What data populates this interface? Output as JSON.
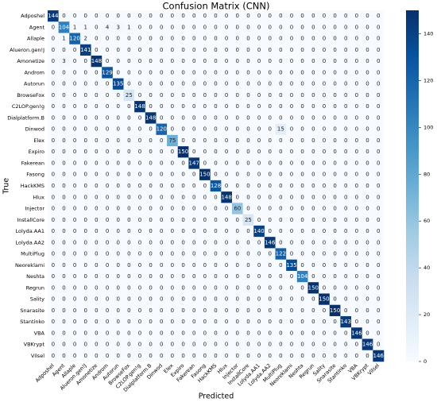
{
  "chart_data": {
    "type": "heatmap",
    "title": "Confusion Matrix (CNN)",
    "x_label": "Predicted",
    "y_label": "True",
    "categories": [
      "Adposhel",
      "Agent",
      "Allaple",
      "Alueron.gen!J",
      "Amonetize",
      "Androm",
      "Autorun",
      "BrowseFox",
      "C2LOP.gen!g",
      "Dialplatform.B",
      "Dinwod",
      "Elex",
      "Expiro",
      "Fakerean",
      "Fasong",
      "HackKMS",
      "Hlux",
      "Injector",
      "InstallCore",
      "Lolyda.AA1",
      "Lolyda.AA2",
      "MultiPlug",
      "Neoreklami",
      "Neshta",
      "Regrun",
      "Sality",
      "Snarasite",
      "Stantinko",
      "VBA",
      "VBKrypt",
      "Vilsel"
    ],
    "values": [
      [
        144,
        0,
        0,
        0,
        0,
        0,
        0,
        0,
        0,
        0,
        0,
        0,
        0,
        0,
        0,
        0,
        0,
        0,
        0,
        0,
        0,
        0,
        0,
        0,
        0,
        0,
        0,
        0,
        0,
        0,
        0
      ],
      [
        0,
        104,
        1,
        1,
        0,
        4,
        3,
        1,
        0,
        0,
        0,
        0,
        0,
        0,
        0,
        0,
        0,
        0,
        0,
        0,
        0,
        0,
        0,
        0,
        0,
        0,
        0,
        0,
        0,
        0,
        0
      ],
      [
        0,
        1,
        120,
        2,
        0,
        0,
        0,
        0,
        0,
        0,
        0,
        0,
        0,
        0,
        0,
        0,
        0,
        0,
        0,
        0,
        0,
        0,
        0,
        0,
        0,
        0,
        0,
        0,
        0,
        0,
        0
      ],
      [
        0,
        0,
        0,
        141,
        0,
        0,
        0,
        0,
        0,
        0,
        0,
        0,
        0,
        0,
        0,
        0,
        0,
        0,
        0,
        0,
        0,
        0,
        0,
        0,
        0,
        0,
        0,
        0,
        0,
        0,
        0
      ],
      [
        0,
        3,
        0,
        0,
        148,
        0,
        0,
        0,
        0,
        0,
        0,
        0,
        0,
        0,
        0,
        0,
        0,
        0,
        0,
        0,
        0,
        0,
        0,
        0,
        0,
        0,
        0,
        0,
        0,
        0,
        0
      ],
      [
        0,
        0,
        0,
        0,
        0,
        129,
        0,
        0,
        0,
        0,
        0,
        0,
        0,
        0,
        0,
        0,
        0,
        0,
        0,
        0,
        0,
        0,
        0,
        0,
        0,
        0,
        0,
        0,
        0,
        0,
        0
      ],
      [
        0,
        0,
        0,
        0,
        0,
        0,
        135,
        0,
        0,
        0,
        0,
        0,
        0,
        0,
        0,
        0,
        0,
        0,
        0,
        0,
        0,
        0,
        0,
        0,
        0,
        0,
        0,
        0,
        0,
        0,
        0
      ],
      [
        0,
        0,
        0,
        0,
        0,
        0,
        0,
        25,
        0,
        0,
        0,
        0,
        0,
        0,
        0,
        0,
        0,
        0,
        0,
        0,
        0,
        0,
        0,
        0,
        0,
        0,
        0,
        0,
        0,
        0,
        0
      ],
      [
        0,
        0,
        0,
        0,
        0,
        0,
        0,
        0,
        148,
        0,
        0,
        0,
        0,
        0,
        0,
        0,
        0,
        0,
        0,
        0,
        0,
        0,
        0,
        0,
        0,
        0,
        0,
        0,
        0,
        0,
        0
      ],
      [
        0,
        0,
        0,
        0,
        0,
        0,
        0,
        0,
        0,
        148,
        0,
        0,
        0,
        0,
        0,
        0,
        0,
        0,
        0,
        0,
        0,
        0,
        0,
        0,
        0,
        0,
        0,
        0,
        0,
        0,
        0
      ],
      [
        0,
        0,
        0,
        0,
        0,
        0,
        0,
        0,
        0,
        0,
        120,
        0,
        0,
        0,
        0,
        0,
        0,
        0,
        0,
        0,
        0,
        15,
        0,
        0,
        0,
        0,
        0,
        0,
        0,
        0,
        0
      ],
      [
        0,
        0,
        0,
        0,
        0,
        0,
        0,
        0,
        0,
        0,
        0,
        75,
        0,
        0,
        0,
        0,
        0,
        0,
        0,
        0,
        0,
        0,
        0,
        0,
        0,
        0,
        0,
        0,
        0,
        0,
        0
      ],
      [
        0,
        0,
        0,
        0,
        0,
        0,
        0,
        0,
        0,
        0,
        0,
        0,
        150,
        0,
        0,
        0,
        0,
        0,
        0,
        0,
        0,
        0,
        0,
        0,
        0,
        0,
        0,
        0,
        0,
        0,
        0
      ],
      [
        0,
        0,
        0,
        0,
        0,
        0,
        0,
        0,
        0,
        0,
        0,
        0,
        0,
        147,
        0,
        0,
        0,
        0,
        0,
        0,
        0,
        0,
        0,
        0,
        0,
        0,
        0,
        0,
        0,
        0,
        0
      ],
      [
        0,
        0,
        0,
        0,
        0,
        0,
        0,
        0,
        0,
        0,
        0,
        0,
        0,
        0,
        150,
        0,
        0,
        0,
        0,
        0,
        0,
        0,
        0,
        0,
        0,
        0,
        0,
        0,
        0,
        0,
        0
      ],
      [
        0,
        0,
        0,
        0,
        0,
        0,
        0,
        0,
        0,
        0,
        0,
        0,
        0,
        0,
        0,
        128,
        0,
        0,
        0,
        0,
        0,
        0,
        0,
        0,
        0,
        0,
        0,
        0,
        0,
        0,
        0
      ],
      [
        0,
        0,
        0,
        0,
        0,
        0,
        0,
        0,
        0,
        0,
        0,
        0,
        0,
        0,
        0,
        0,
        148,
        0,
        0,
        0,
        0,
        0,
        0,
        0,
        0,
        0,
        0,
        0,
        0,
        0,
        0
      ],
      [
        0,
        0,
        0,
        0,
        0,
        0,
        0,
        0,
        0,
        0,
        0,
        0,
        0,
        0,
        0,
        0,
        0,
        60,
        0,
        0,
        0,
        0,
        0,
        0,
        0,
        0,
        0,
        0,
        0,
        0,
        0
      ],
      [
        0,
        0,
        0,
        0,
        0,
        0,
        0,
        0,
        0,
        0,
        0,
        0,
        0,
        0,
        0,
        0,
        0,
        0,
        25,
        0,
        0,
        0,
        0,
        0,
        0,
        0,
        0,
        0,
        0,
        0,
        0
      ],
      [
        0,
        0,
        0,
        0,
        0,
        0,
        0,
        0,
        0,
        0,
        0,
        0,
        0,
        0,
        0,
        0,
        0,
        0,
        0,
        140,
        0,
        0,
        0,
        0,
        0,
        0,
        0,
        0,
        0,
        0,
        0
      ],
      [
        0,
        0,
        0,
        0,
        0,
        0,
        0,
        0,
        0,
        0,
        0,
        0,
        0,
        0,
        0,
        0,
        0,
        0,
        0,
        0,
        146,
        0,
        0,
        0,
        0,
        0,
        0,
        0,
        0,
        0,
        0
      ],
      [
        0,
        0,
        0,
        0,
        0,
        0,
        0,
        0,
        0,
        0,
        0,
        0,
        0,
        0,
        0,
        0,
        0,
        0,
        0,
        0,
        0,
        122,
        0,
        0,
        0,
        0,
        0,
        0,
        0,
        0,
        0
      ],
      [
        0,
        0,
        0,
        0,
        0,
        0,
        0,
        0,
        0,
        0,
        0,
        0,
        0,
        0,
        0,
        0,
        0,
        0,
        0,
        0,
        0,
        0,
        135,
        0,
        0,
        0,
        0,
        0,
        0,
        0,
        0
      ],
      [
        0,
        0,
        0,
        0,
        0,
        0,
        0,
        0,
        0,
        0,
        0,
        0,
        0,
        0,
        0,
        0,
        0,
        0,
        0,
        0,
        0,
        0,
        0,
        104,
        0,
        0,
        0,
        0,
        0,
        0,
        0
      ],
      [
        0,
        0,
        0,
        0,
        0,
        0,
        0,
        0,
        0,
        0,
        0,
        0,
        0,
        0,
        0,
        0,
        0,
        0,
        0,
        0,
        0,
        0,
        0,
        0,
        150,
        0,
        0,
        0,
        0,
        0,
        0
      ],
      [
        0,
        0,
        0,
        0,
        0,
        0,
        0,
        0,
        0,
        0,
        0,
        0,
        0,
        0,
        0,
        0,
        0,
        0,
        0,
        0,
        0,
        0,
        0,
        0,
        0,
        150,
        0,
        0,
        0,
        0,
        0
      ],
      [
        0,
        0,
        0,
        0,
        0,
        0,
        0,
        0,
        0,
        0,
        0,
        0,
        0,
        0,
        0,
        0,
        0,
        0,
        0,
        0,
        0,
        0,
        0,
        0,
        0,
        0,
        150,
        0,
        0,
        0,
        0
      ],
      [
        0,
        0,
        0,
        0,
        0,
        0,
        0,
        0,
        0,
        0,
        0,
        0,
        0,
        0,
        0,
        0,
        0,
        0,
        0,
        0,
        0,
        0,
        0,
        0,
        0,
        0,
        0,
        143,
        0,
        0,
        0
      ],
      [
        0,
        0,
        0,
        0,
        0,
        0,
        0,
        0,
        0,
        0,
        0,
        0,
        0,
        0,
        0,
        0,
        0,
        0,
        0,
        0,
        0,
        0,
        0,
        0,
        0,
        0,
        0,
        0,
        146,
        0,
        0
      ],
      [
        0,
        0,
        0,
        0,
        0,
        0,
        0,
        0,
        0,
        0,
        0,
        0,
        0,
        0,
        0,
        0,
        0,
        0,
        0,
        0,
        0,
        0,
        0,
        0,
        0,
        0,
        0,
        0,
        0,
        146,
        0
      ],
      [
        0,
        0,
        0,
        0,
        0,
        0,
        0,
        0,
        0,
        0,
        0,
        0,
        0,
        0,
        0,
        0,
        0,
        0,
        0,
        0,
        0,
        0,
        0,
        0,
        0,
        0,
        0,
        0,
        0,
        0,
        146
      ]
    ],
    "colormap": "Blues",
    "clim": [
      0,
      150
    ],
    "cticks": [
      0,
      20,
      40,
      60,
      80,
      100,
      120,
      140
    ]
  }
}
